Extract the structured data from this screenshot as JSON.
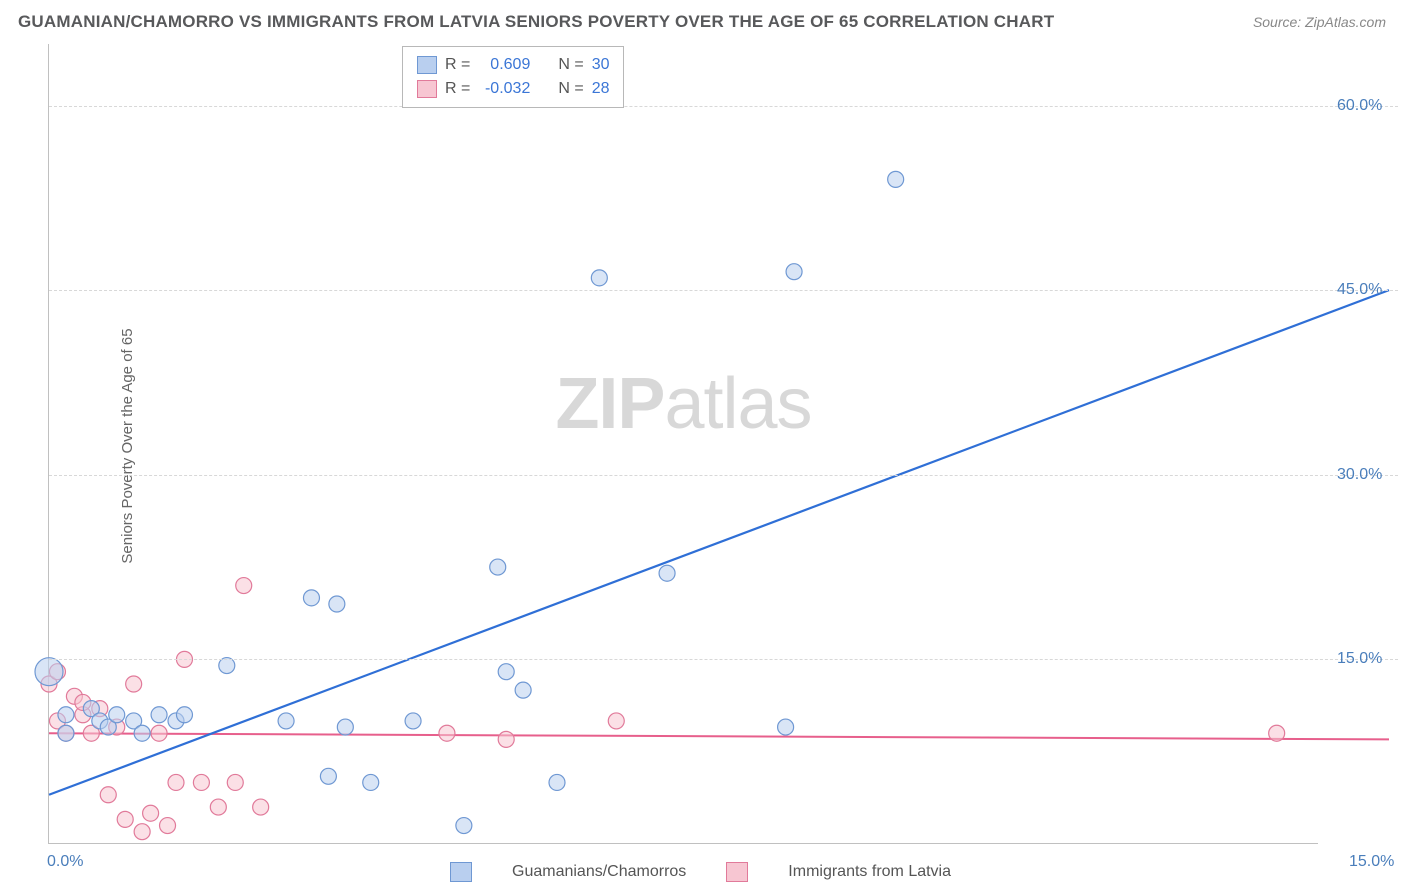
{
  "title": "GUAMANIAN/CHAMORRO VS IMMIGRANTS FROM LATVIA SENIORS POVERTY OVER THE AGE OF 65 CORRELATION CHART",
  "source": "Source: ZipAtlas.com",
  "ylabel": "Seniors Poverty Over the Age of 65",
  "watermark_a": "ZIP",
  "watermark_b": "atlas",
  "chart": {
    "type": "scatter",
    "background_color": "#ffffff",
    "grid_color": "#d8d8d8",
    "axis_color": "#c0c0c0",
    "label_color": "#666666",
    "tick_font_color": "#4a7ebb",
    "tick_fontsize": 16,
    "title_fontsize": 17,
    "title_color": "#58595b",
    "xlim": [
      0,
      15
    ],
    "ylim": [
      0,
      65
    ],
    "x_ticks": [
      0.0,
      15.0
    ],
    "x_tick_labels": [
      "0.0%",
      "15.0%"
    ],
    "y_ticks": [
      15.0,
      30.0,
      45.0,
      60.0
    ],
    "y_tick_labels": [
      "15.0%",
      "30.0%",
      "45.0%",
      "60.0%"
    ]
  },
  "series": [
    {
      "name": "Guamanians/Chamorros",
      "marker_fill": "#b9cfef",
      "marker_stroke": "#6f98d3",
      "opacity": 0.55,
      "r": 8,
      "R": 0.609,
      "N": 30,
      "trend": {
        "color": "#2f6fd6",
        "width": 2.2,
        "x1": 0,
        "y1": 4,
        "x2": 15,
        "y2": 45
      },
      "points": [
        {
          "x": 0.0,
          "y": 14.0,
          "r": 14
        },
        {
          "x": 0.2,
          "y": 10.5
        },
        {
          "x": 0.2,
          "y": 9.0
        },
        {
          "x": 0.5,
          "y": 11.0
        },
        {
          "x": 0.6,
          "y": 10.0
        },
        {
          "x": 0.7,
          "y": 9.5
        },
        {
          "x": 0.8,
          "y": 10.5
        },
        {
          "x": 1.0,
          "y": 10.0
        },
        {
          "x": 1.1,
          "y": 9.0
        },
        {
          "x": 1.3,
          "y": 10.5
        },
        {
          "x": 1.5,
          "y": 10.0
        },
        {
          "x": 1.6,
          "y": 10.5
        },
        {
          "x": 2.1,
          "y": 14.5
        },
        {
          "x": 2.8,
          "y": 10.0
        },
        {
          "x": 3.1,
          "y": 20.0
        },
        {
          "x": 3.4,
          "y": 19.5
        },
        {
          "x": 3.3,
          "y": 5.5
        },
        {
          "x": 3.5,
          "y": 9.5
        },
        {
          "x": 3.8,
          "y": 5.0
        },
        {
          "x": 4.3,
          "y": 10.0
        },
        {
          "x": 4.9,
          "y": 1.5
        },
        {
          "x": 5.3,
          "y": 22.5
        },
        {
          "x": 5.4,
          "y": 14.0
        },
        {
          "x": 5.6,
          "y": 12.5
        },
        {
          "x": 6.0,
          "y": 5.0
        },
        {
          "x": 6.5,
          "y": 46.0
        },
        {
          "x": 7.3,
          "y": 22.0
        },
        {
          "x": 8.7,
          "y": 9.5
        },
        {
          "x": 8.8,
          "y": 46.5
        },
        {
          "x": 10.0,
          "y": 54.0
        }
      ]
    },
    {
      "name": "Immigrants from Latvia",
      "marker_fill": "#f7c6d2",
      "marker_stroke": "#e17a9a",
      "opacity": 0.55,
      "r": 8,
      "R": -0.032,
      "N": 28,
      "trend": {
        "color": "#e75f8c",
        "width": 2.0,
        "x1": 0,
        "y1": 9.0,
        "x2": 15,
        "y2": 8.5
      },
      "points": [
        {
          "x": 0.0,
          "y": 13.0
        },
        {
          "x": 0.1,
          "y": 10.0
        },
        {
          "x": 0.1,
          "y": 14.0
        },
        {
          "x": 0.2,
          "y": 9.0
        },
        {
          "x": 0.3,
          "y": 12.0
        },
        {
          "x": 0.4,
          "y": 10.5
        },
        {
          "x": 0.4,
          "y": 11.5
        },
        {
          "x": 0.5,
          "y": 9.0
        },
        {
          "x": 0.6,
          "y": 11.0
        },
        {
          "x": 0.7,
          "y": 4.0
        },
        {
          "x": 0.8,
          "y": 9.5
        },
        {
          "x": 0.9,
          "y": 2.0
        },
        {
          "x": 1.0,
          "y": 13.0
        },
        {
          "x": 1.1,
          "y": 1.0
        },
        {
          "x": 1.2,
          "y": 2.5
        },
        {
          "x": 1.3,
          "y": 9.0
        },
        {
          "x": 1.4,
          "y": 1.5
        },
        {
          "x": 1.5,
          "y": 5.0
        },
        {
          "x": 1.6,
          "y": 15.0
        },
        {
          "x": 1.8,
          "y": 5.0
        },
        {
          "x": 2.0,
          "y": 3.0
        },
        {
          "x": 2.2,
          "y": 5.0
        },
        {
          "x": 2.3,
          "y": 21.0
        },
        {
          "x": 2.5,
          "y": 3.0
        },
        {
          "x": 4.7,
          "y": 9.0
        },
        {
          "x": 5.4,
          "y": 8.5
        },
        {
          "x": 6.7,
          "y": 10.0
        },
        {
          "x": 14.5,
          "y": 9.0
        }
      ]
    }
  ],
  "legend": {
    "stats_labels": {
      "R": "R =",
      "N": "N ="
    },
    "bottom": [
      {
        "label": "Guamanians/Chamorros",
        "fill": "#b9cfef",
        "stroke": "#6f98d3"
      },
      {
        "label": "Immigrants from Latvia",
        "fill": "#f7c6d2",
        "stroke": "#e17a9a"
      }
    ]
  }
}
